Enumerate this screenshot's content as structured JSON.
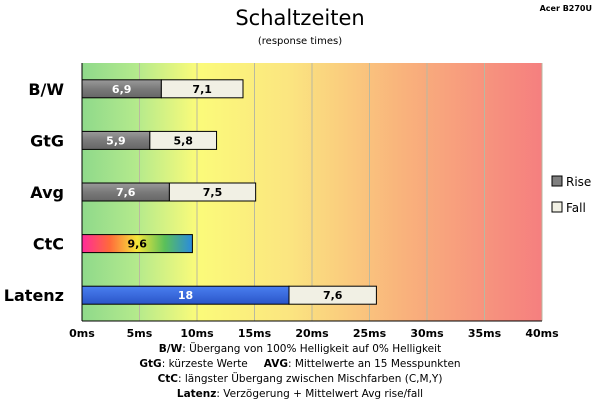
{
  "header": {
    "title": "Schaltzeiten",
    "subtitle": "(response times)",
    "badge": "Acer B270U"
  },
  "chart_data": {
    "type": "bar",
    "orientation": "horizontal",
    "stacked": true,
    "title": "Schaltzeiten",
    "subtitle": "(response times)",
    "categories": [
      "B/W",
      "GtG",
      "Avg",
      "CtC",
      "Latenz"
    ],
    "series": [
      {
        "name": "Rise",
        "values": [
          6.9,
          5.9,
          7.6,
          9.6,
          18
        ],
        "color": "#7f7f7f"
      },
      {
        "name": "Fall",
        "values": [
          7.1,
          5.8,
          7.5,
          null,
          7.6
        ],
        "color": "#f1f0e4"
      }
    ],
    "value_labels": {
      "Rise": [
        "6,9",
        "5,9",
        "7,6",
        "9,6",
        "18"
      ],
      "Fall": [
        "7,1",
        "5,8",
        "7,5",
        "",
        "7,6"
      ]
    },
    "special_colors": {
      "CtC": "rainbow",
      "Latenz_rise": "#3366dd"
    },
    "xlim": [
      0,
      40
    ],
    "xticks": [
      0,
      5,
      10,
      15,
      20,
      25,
      30,
      35,
      40
    ],
    "xtick_labels": [
      "0ms",
      "5ms",
      "10ms",
      "15ms",
      "20ms",
      "25ms",
      "30ms",
      "35ms",
      "40ms"
    ],
    "background": "gradient green-yellow-red",
    "grid": true,
    "legend": {
      "position": "right",
      "entries": [
        "Rise",
        "Fall"
      ]
    }
  },
  "notes": {
    "bw_key": "B/W",
    "bw_text": ":  Übergang von 100% Helligkeit auf 0% Helligkeit",
    "gtg_key": "GtG",
    "gtg_text": ": kürzeste  Werte",
    "avg_key": "AVG",
    "avg_text": ": Mittelwerte  an 15 Messpunkten",
    "ctc_key": "CtC",
    "ctc_text": ": längster Übergang  zwischen Mischfarben (C,M,Y)",
    "lat_key": "Latenz",
    "lat_text": ": Verzögerung  + Mittelwert Avg rise/fall"
  }
}
